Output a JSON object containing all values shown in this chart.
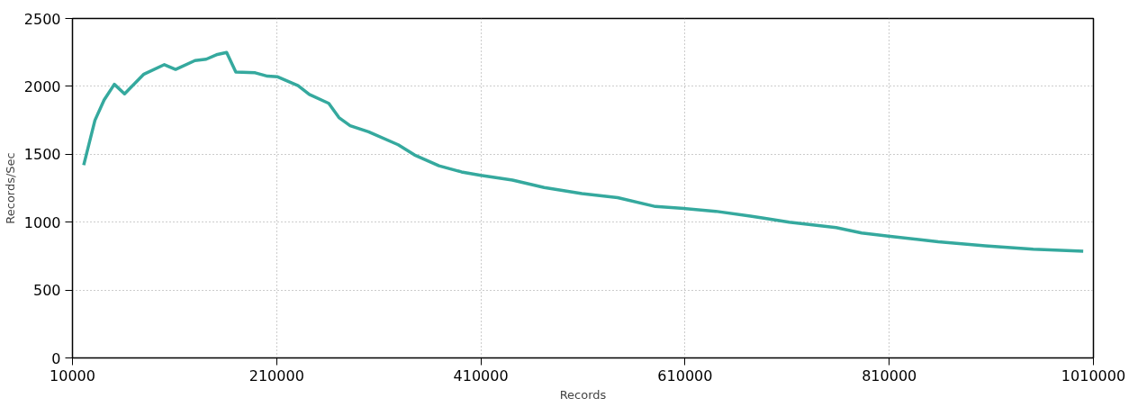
{
  "chart_data": {
    "type": "line",
    "xlabel": "Records",
    "ylabel": "Records/Sec",
    "xlim": [
      10000,
      1010000
    ],
    "xticks": [
      10000,
      210000,
      410000,
      610000,
      810000,
      1010000
    ],
    "ylim": [
      0,
      2500
    ],
    "yticks": [
      0,
      500,
      1000,
      1500,
      2000,
      2500
    ],
    "grid": true,
    "marker": "none",
    "line_style": "solid",
    "series": [
      {
        "color": "#35a99e",
        "x": [
          21000,
          32000,
          41000,
          51000,
          61000,
          80000,
          100000,
          111000,
          130000,
          141000,
          152000,
          161000,
          170000,
          189000,
          201000,
          211000,
          231000,
          242000,
          261000,
          271000,
          282000,
          300000,
          329000,
          345000,
          369000,
          391000,
          410000,
          441000,
          472000,
          509000,
          544000,
          581000,
          609000,
          640000,
          674000,
          687000,
          712000,
          758000,
          783000,
          811000,
          858000,
          904000,
          951000,
          1000000
        ],
        "values": [
          1420,
          1750,
          1900,
          2015,
          1945,
          2090,
          2160,
          2125,
          2190,
          2200,
          2235,
          2250,
          2105,
          2100,
          2075,
          2070,
          2005,
          1940,
          1875,
          1770,
          1710,
          1665,
          1570,
          1495,
          1415,
          1370,
          1345,
          1310,
          1255,
          1210,
          1180,
          1115,
          1100,
          1080,
          1045,
          1030,
          1000,
          960,
          920,
          895,
          855,
          825,
          800,
          785
        ]
      }
    ]
  }
}
